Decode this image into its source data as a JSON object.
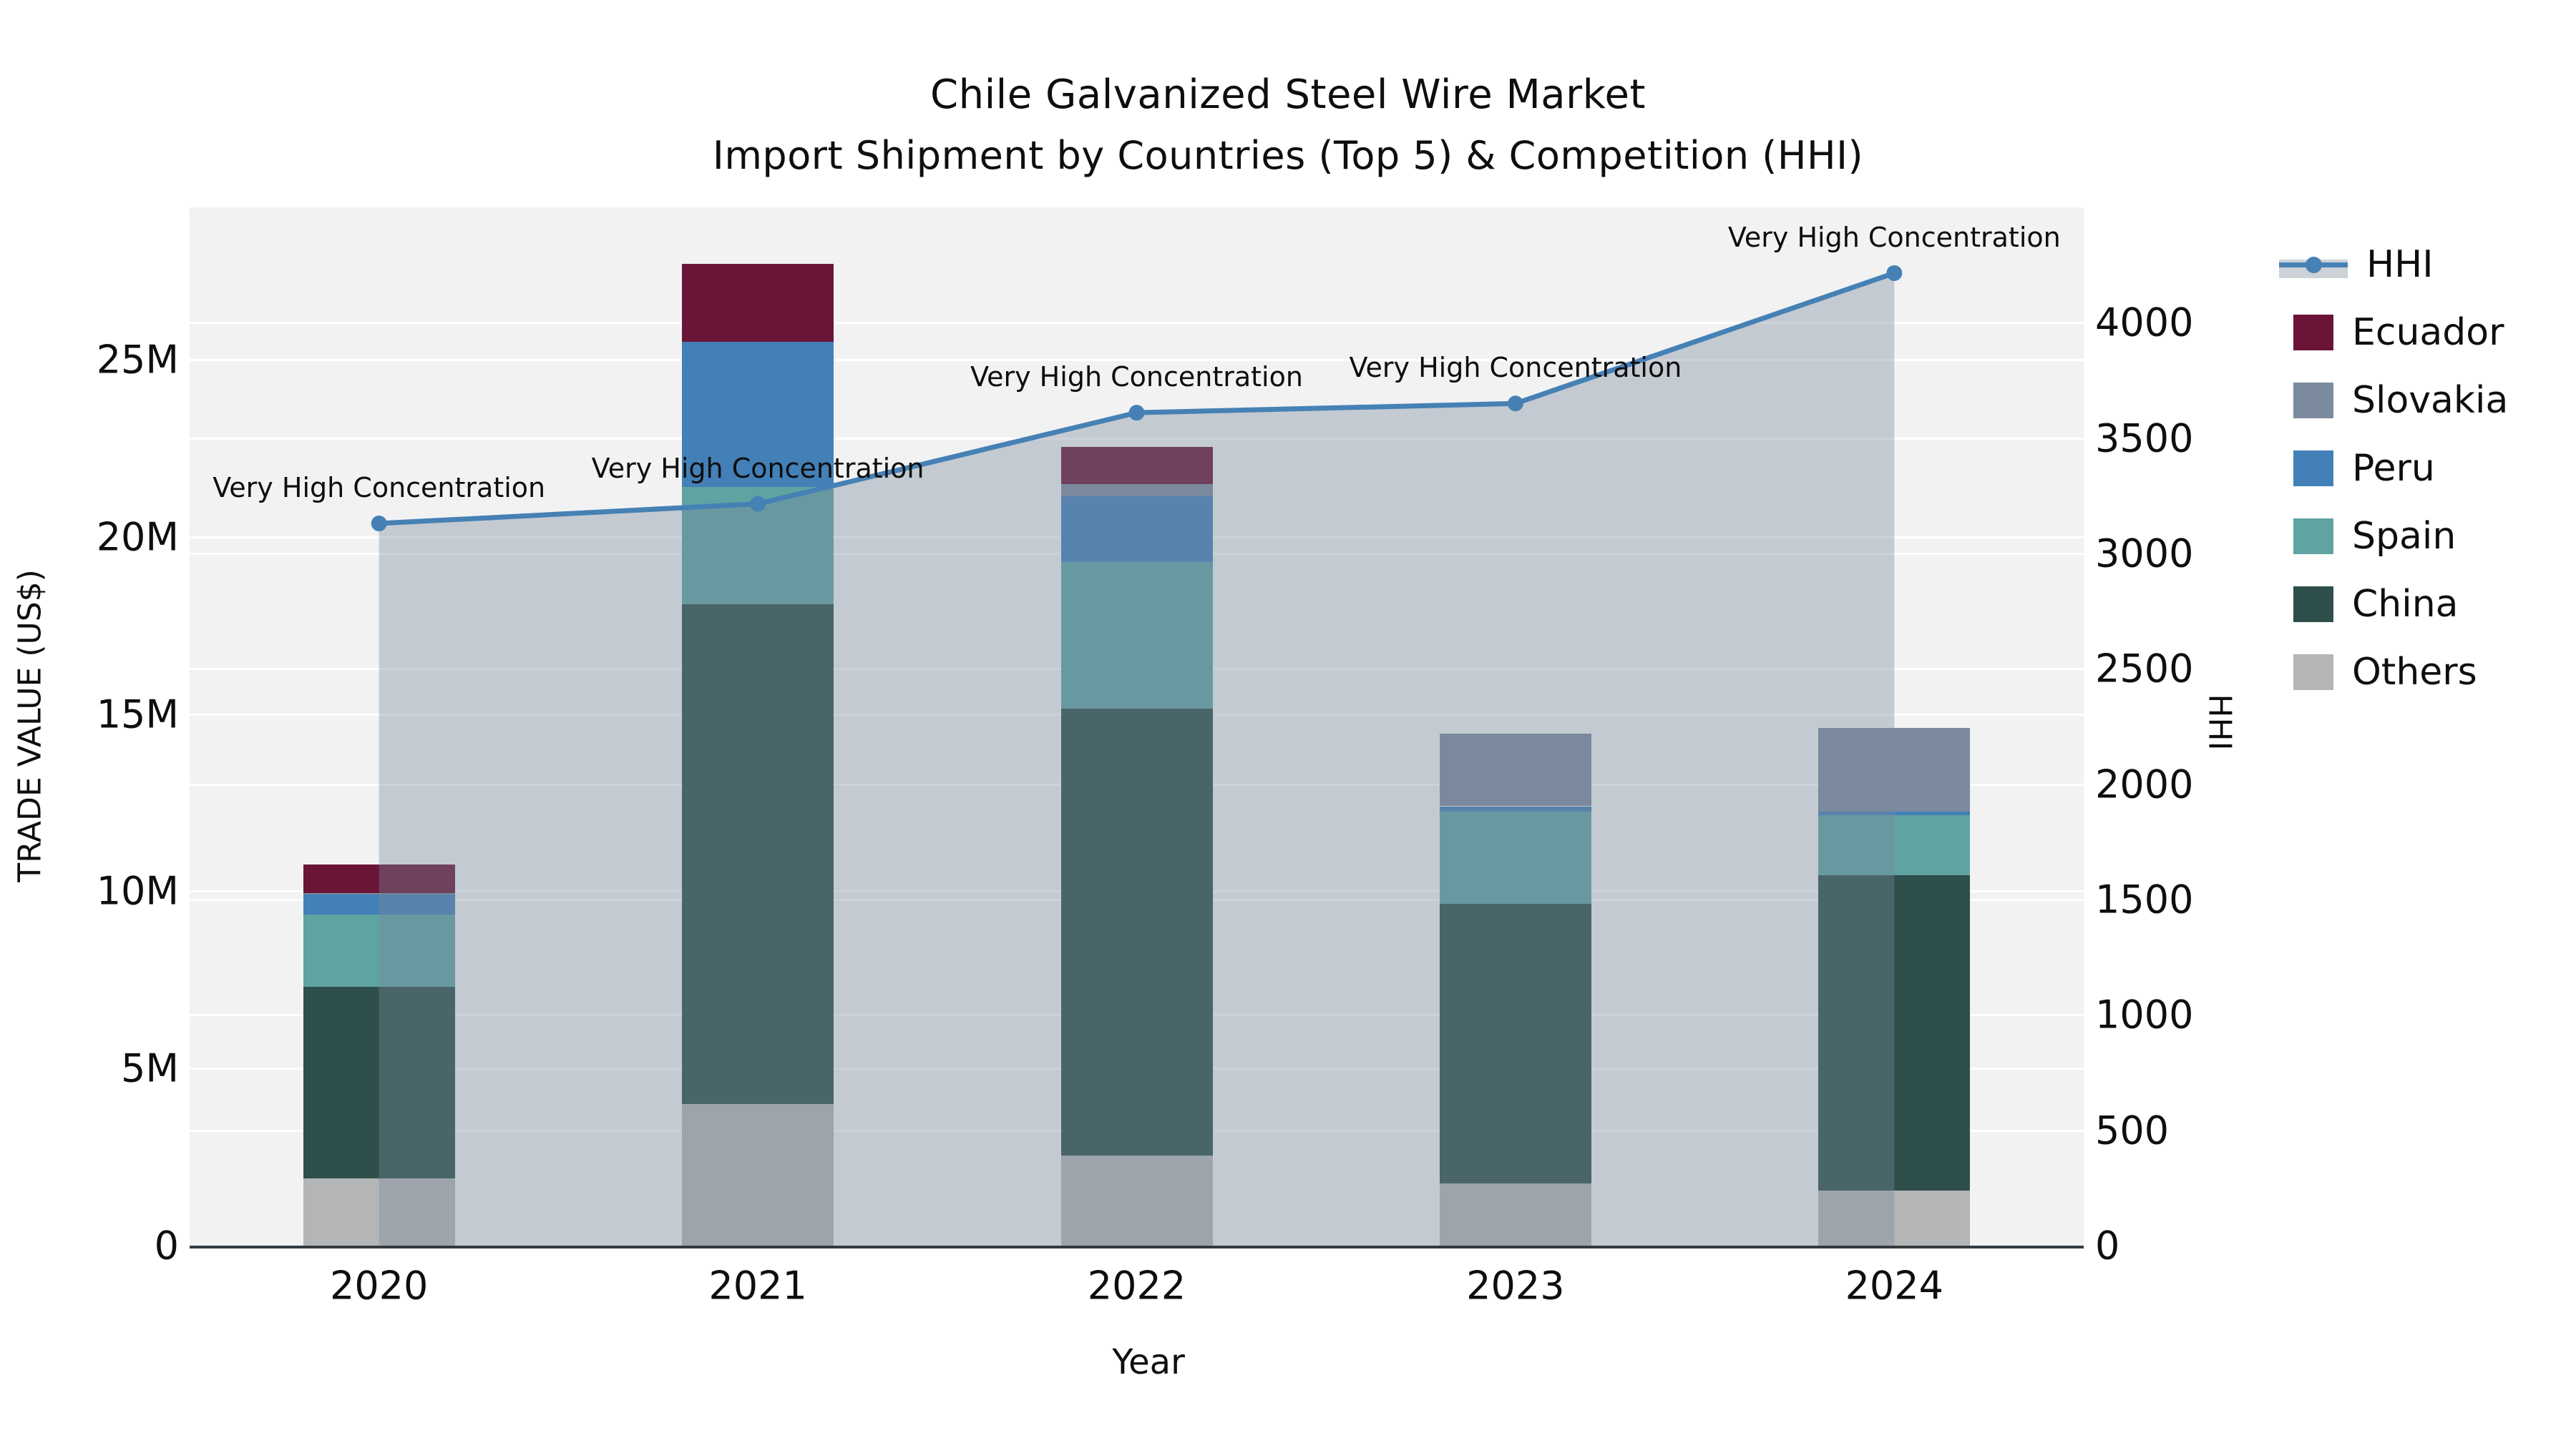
{
  "title": {
    "line1": "Chile Galvanized Steel Wire Market",
    "line2": "Import Shipment by Countries (Top 5) & Competition (HHI)"
  },
  "annotation_text": "Very High Concentration",
  "legend": {
    "position": "right",
    "items": [
      {
        "label": "HHI",
        "type": "line",
        "color": "#4681b5",
        "band_color": "#cdd2d9"
      },
      {
        "label": "Ecuador",
        "type": "bar",
        "color": "#6a1538"
      },
      {
        "label": "Slovakia",
        "type": "bar",
        "color": "#7b8a9e"
      },
      {
        "label": "Peru",
        "type": "bar",
        "color": "#4380b8"
      },
      {
        "label": "Spain",
        "type": "bar",
        "color": "#60a3a3"
      },
      {
        "label": "China",
        "type": "bar",
        "color": "#2e4f4b"
      },
      {
        "label": "Others",
        "type": "bar",
        "color": "#b4b5b6"
      }
    ]
  },
  "chart_data": {
    "type": "bar",
    "subtype": "stacked-bar-with-line",
    "title": "Chile Galvanized Steel Wire Market — Import Shipment by Countries (Top 5) & Competition (HHI)",
    "categories": [
      "2020",
      "2021",
      "2022",
      "2023",
      "2024"
    ],
    "value_unit": "million US$",
    "bar_series": [
      {
        "name": "Others",
        "color": "#b4b5b6",
        "values": [
          1.9,
          4.0,
          2.55,
          1.75,
          1.55
        ]
      },
      {
        "name": "China",
        "color": "#2e4f4b",
        "values": [
          5.4,
          14.1,
          12.6,
          7.9,
          8.9
        ]
      },
      {
        "name": "Spain",
        "color": "#60a3a3",
        "values": [
          2.05,
          3.3,
          4.15,
          2.6,
          1.7
        ]
      },
      {
        "name": "Peru",
        "color": "#4380b8",
        "values": [
          0.55,
          4.1,
          1.85,
          0.15,
          0.1
        ]
      },
      {
        "name": "Slovakia",
        "color": "#7b8a9e",
        "values": [
          0.05,
          0.0,
          0.35,
          2.05,
          2.35
        ]
      },
      {
        "name": "Ecuador",
        "color": "#6a1538",
        "values": [
          0.8,
          2.2,
          1.05,
          0.0,
          0.0
        ]
      }
    ],
    "bar_totals": [
      10.75,
      27.7,
      22.55,
      14.45,
      14.6
    ],
    "line_series": {
      "name": "HHI",
      "axis": "right",
      "color": "#4681b5",
      "fill_color": "rgba(122,136,156,0.38)",
      "values": [
        3130,
        3215,
        3610,
        3650,
        4215
      ],
      "annotations": [
        "Very High Concentration",
        "Very High Concentration",
        "Very High Concentration",
        "Very High Concentration",
        "Very High Concentration"
      ]
    },
    "axes": {
      "x": {
        "title": "Year",
        "tick_labels": [
          "2020",
          "2021",
          "2022",
          "2023",
          "2024"
        ]
      },
      "y_left": {
        "title": "TRADE VALUE (US$)",
        "tick_labels": [
          "0",
          "5M",
          "10M",
          "15M",
          "20M",
          "25M"
        ],
        "tick_values": [
          0,
          5,
          10,
          15,
          20,
          25
        ],
        "range": [
          0,
          29.3
        ]
      },
      "y_right": {
        "title": "HHI",
        "tick_labels": [
          "0",
          "500",
          "1000",
          "1500",
          "2000",
          "2500",
          "3000",
          "3500",
          "4000"
        ],
        "tick_values": [
          0,
          500,
          1000,
          1500,
          2000,
          2500,
          3000,
          3500,
          4000
        ],
        "range": [
          0,
          4500
        ]
      }
    },
    "grid": true,
    "plot_background": "#f2f2f3",
    "gridline_color": "#ffffff",
    "axis_line_color": "#333a40"
  }
}
